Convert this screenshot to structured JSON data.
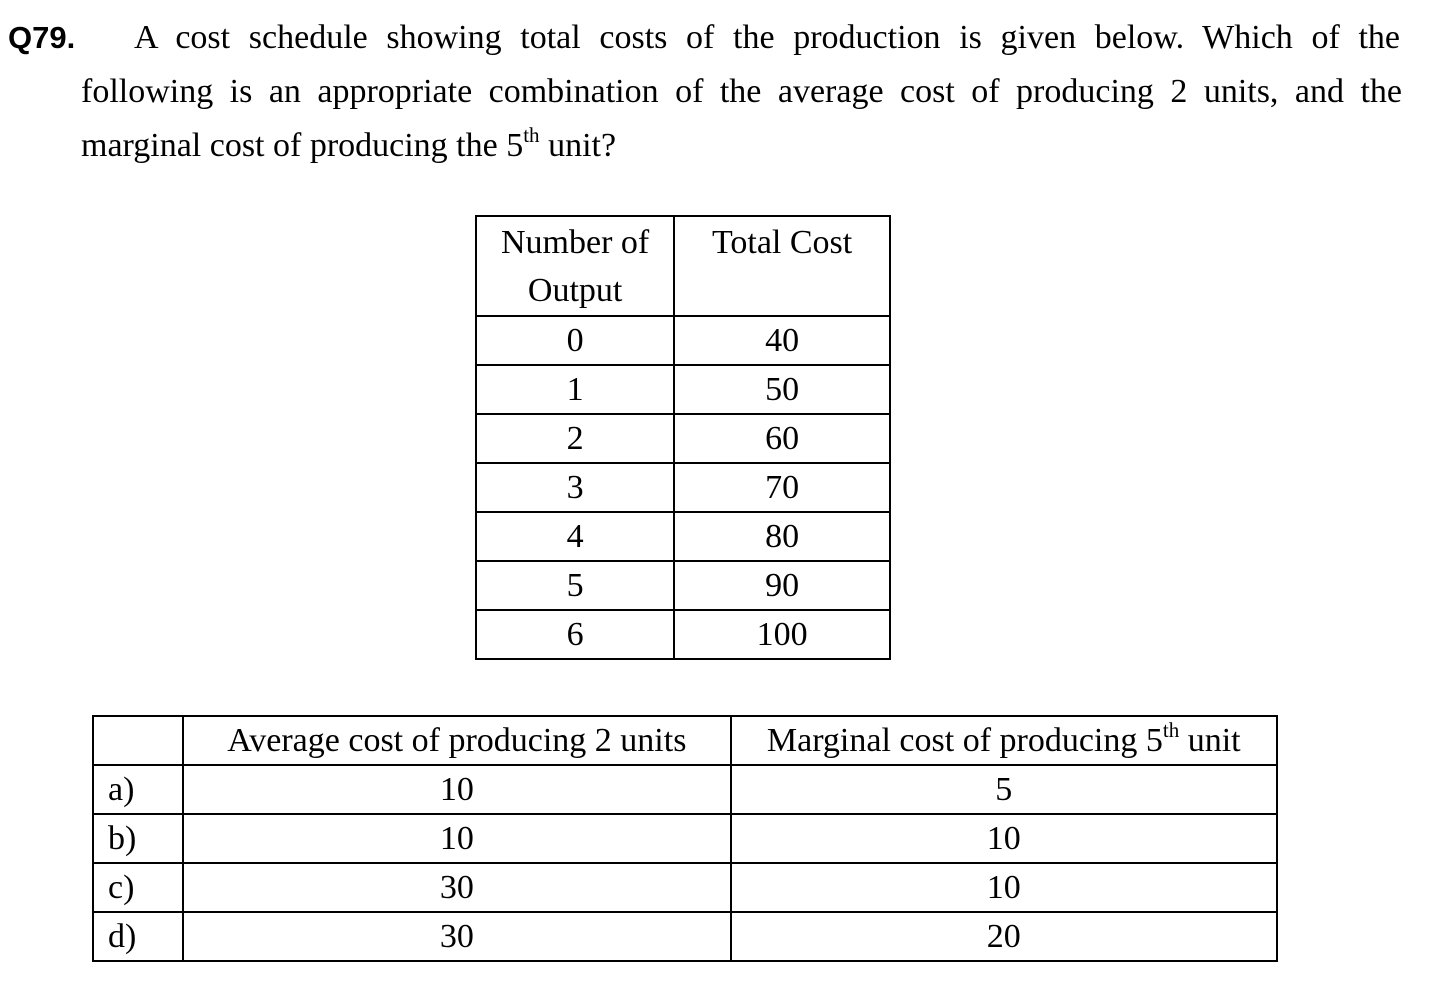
{
  "question": {
    "number": "Q79.",
    "line1": "A cost schedule showing total costs of the production is given below. Which of the",
    "line2": "following is an appropriate combination of the average cost of producing 2 units, and the",
    "line3_before": "marginal cost of producing the 5",
    "line3_sup": "th",
    "line3_after": " unit?"
  },
  "cost_table": {
    "header_output": "Number of Output",
    "header_total_cost": "Total Cost",
    "rows": [
      {
        "output": "0",
        "total_cost": "40"
      },
      {
        "output": "1",
        "total_cost": "50"
      },
      {
        "output": "2",
        "total_cost": "60"
      },
      {
        "output": "3",
        "total_cost": "70"
      },
      {
        "output": "4",
        "total_cost": "80"
      },
      {
        "output": "5",
        "total_cost": "90"
      },
      {
        "output": "6",
        "total_cost": "100"
      }
    ]
  },
  "options_table": {
    "header_blank": "",
    "header_avg": "Average cost of producing 2 units",
    "header_mc_before": "Marginal cost of producing 5",
    "header_mc_sup": "th",
    "header_mc_after": " unit",
    "rows": [
      {
        "label": "a)",
        "avg": "10",
        "mc": "5"
      },
      {
        "label": "b)",
        "avg": "10",
        "mc": "10"
      },
      {
        "label": "c)",
        "avg": "30",
        "mc": "10"
      },
      {
        "label": "d)",
        "avg": "30",
        "mc": "20"
      }
    ]
  }
}
